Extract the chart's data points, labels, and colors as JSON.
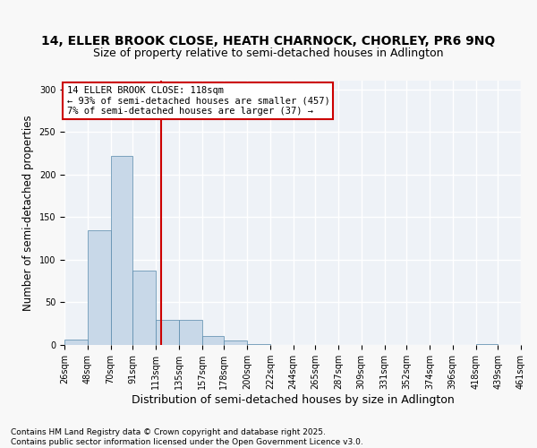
{
  "title": "14, ELLER BROOK CLOSE, HEATH CHARNOCK, CHORLEY, PR6 9NQ",
  "subtitle": "Size of property relative to semi-detached houses in Adlington",
  "xlabel": "Distribution of semi-detached houses by size in Adlington",
  "ylabel": "Number of semi-detached properties",
  "bin_edges": [
    26,
    48,
    70,
    91,
    113,
    135,
    157,
    178,
    200,
    222,
    244,
    265,
    287,
    309,
    331,
    352,
    374,
    396,
    418,
    439,
    461
  ],
  "bar_heights": [
    6,
    135,
    222,
    87,
    29,
    29,
    11,
    5,
    1,
    0,
    0,
    0,
    0,
    0,
    0,
    0,
    0,
    0,
    1,
    0
  ],
  "bar_color": "#c8d8e8",
  "bar_edge_color": "#5588aa",
  "vline_x": 118,
  "vline_color": "#cc0000",
  "annotation_text": "14 ELLER BROOK CLOSE: 118sqm\n← 93% of semi-detached houses are smaller (457)\n7% of semi-detached houses are larger (37) →",
  "annotation_box_color": "#ffffff",
  "annotation_box_edge_color": "#cc0000",
  "ylim": [
    0,
    310
  ],
  "yticks": [
    0,
    50,
    100,
    150,
    200,
    250,
    300
  ],
  "background_color": "#eef2f7",
  "grid_color": "#ffffff",
  "footnote": "Contains HM Land Registry data © Crown copyright and database right 2025.\nContains public sector information licensed under the Open Government Licence v3.0.",
  "title_fontsize": 10,
  "subtitle_fontsize": 9,
  "xlabel_fontsize": 9,
  "ylabel_fontsize": 8.5,
  "tick_fontsize": 7,
  "annotation_fontsize": 7.5,
  "footnote_fontsize": 6.5
}
